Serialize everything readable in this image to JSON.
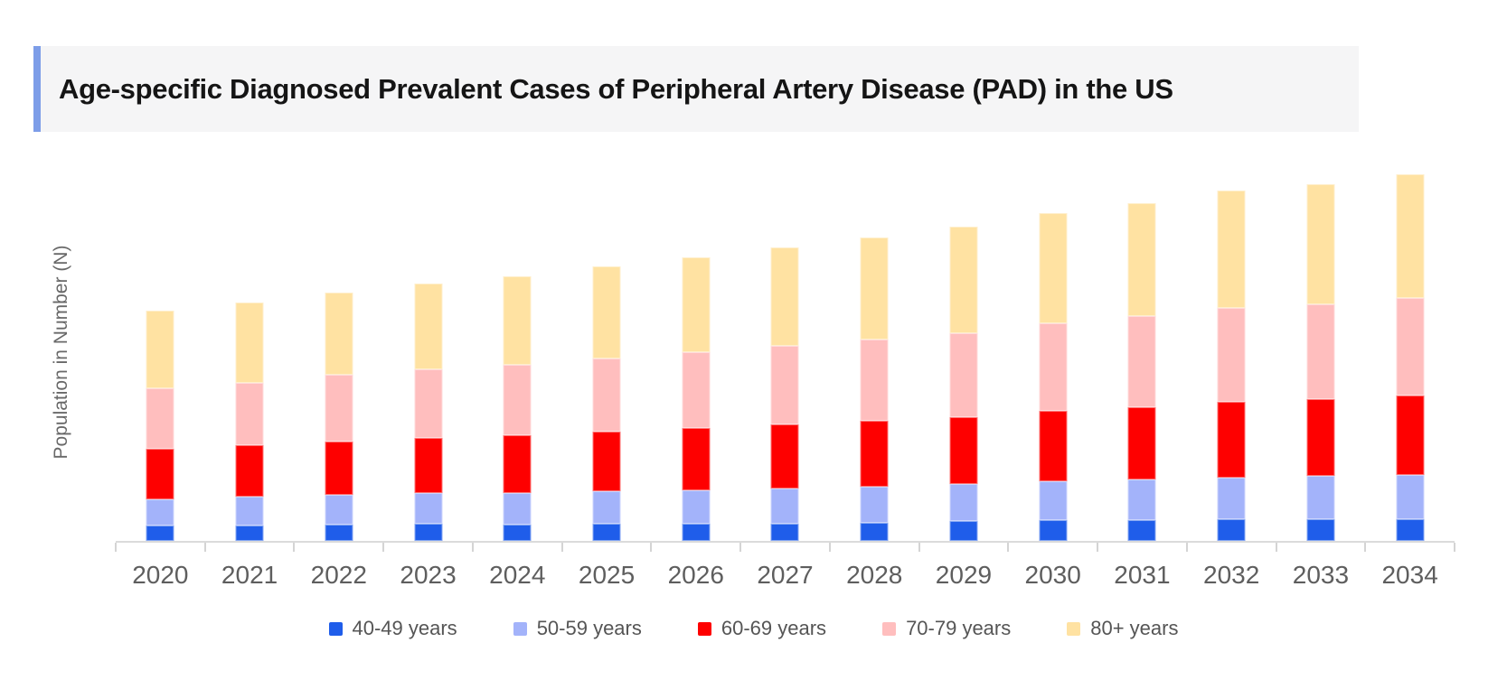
{
  "title": {
    "text": "Age-specific Diagnosed Prevalent Cases of Peripheral Artery Disease (PAD) in the US"
  },
  "colors": {
    "accent_bar": "#7d9de8",
    "title_background": "#f5f5f6",
    "axis_line": "#dbdbdb",
    "age_40_49": "#1f5dea",
    "age_50_59": "#a3b3fa",
    "age_60_69": "#fe0000",
    "age_70_79": "#ffbebe",
    "age_80_plus": "#ffe2a2"
  },
  "chart_data": {
    "type": "bar",
    "stacked": true,
    "title": "Age-specific Diagnosed Prevalent Cases of Peripheral Artery Disease (PAD) in the US",
    "xlabel": "",
    "ylabel": "Population in Number (N)",
    "units": "relative height (y-axis has no numeric tick labels)",
    "ylim": [
      0,
      420
    ],
    "grid": false,
    "legend_position": "bottom",
    "categories": [
      "2020",
      "2021",
      "2022",
      "2023",
      "2024",
      "2025",
      "2026",
      "2027",
      "2028",
      "2029",
      "2030",
      "2031",
      "2032",
      "2033",
      "2034"
    ],
    "series": [
      {
        "name": "40-49 years",
        "color": "#1f5dea",
        "values": [
          17,
          17,
          18,
          19,
          18,
          19,
          19,
          19,
          20,
          22,
          23,
          23,
          24,
          24,
          24
        ]
      },
      {
        "name": "50-59 years",
        "color": "#a3b3fa",
        "values": [
          29,
          32,
          33,
          34,
          35,
          36,
          37,
          39,
          40,
          41,
          43,
          45,
          46,
          48,
          49
        ]
      },
      {
        "name": "60-69 years",
        "color": "#fe0000",
        "values": [
          56,
          57,
          59,
          61,
          64,
          66,
          69,
          71,
          73,
          74,
          78,
          80,
          84,
          85,
          88
        ]
      },
      {
        "name": "70-79 years",
        "color": "#ffbebe",
        "values": [
          67,
          69,
          74,
          76,
          78,
          81,
          84,
          87,
          90,
          93,
          97,
          101,
          104,
          105,
          108
        ]
      },
      {
        "name": "80+ years",
        "color": "#ffe2a2",
        "values": [
          86,
          89,
          91,
          95,
          98,
          102,
          105,
          109,
          113,
          118,
          122,
          125,
          130,
          133,
          137
        ]
      }
    ],
    "totals": [
      255,
      264,
      275,
      285,
      293,
      304,
      314,
      325,
      336,
      348,
      363,
      374,
      388,
      395,
      406
    ]
  }
}
